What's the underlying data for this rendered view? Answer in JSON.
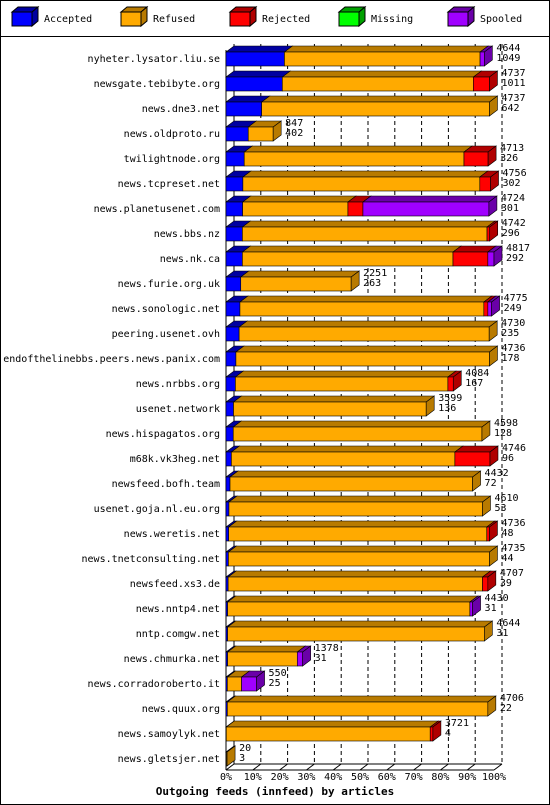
{
  "chart_data": {
    "type": "stacked-bar-3d",
    "orientation": "horizontal",
    "title": "Outgoing feeds (innfeed) by articles",
    "categories": [
      "nyheter.lysator.liu.se",
      "newsgate.tebibyte.org",
      "news.dne3.net",
      "news.oldproto.ru",
      "twilightnode.org",
      "news.tcpreset.net",
      "news.planetusenet.com",
      "news.bbs.nz",
      "news.nk.ca",
      "news.furie.org.uk",
      "news.sonologic.net",
      "peering.usenet.ovh",
      "endofthelinebbs.peers.news.panix.com",
      "news.nrbbs.org",
      "usenet.network",
      "news.hispagatos.org",
      "m68k.vk3heg.net",
      "newsfeed.bofh.team",
      "usenet.goja.nl.eu.org",
      "news.weretis.net",
      "news.tnetconsulting.net",
      "newsfeed.xs3.de",
      "news.nntp4.net",
      "nntp.comgw.net",
      "news.chmurka.net",
      "news.corradoroberto.it",
      "news.quux.org",
      "news.samoylyk.net",
      "news.gletsjer.net"
    ],
    "series": [
      {
        "name": "Accepted",
        "color": "#0000ff",
        "top_color": "#0000a0",
        "values": [
          21.8,
          21.0,
          13.3,
          8.3,
          6.8,
          6.3,
          6.2,
          6.1,
          6.1,
          5.5,
          5.2,
          4.9,
          3.7,
          3.5,
          2.8,
          2.7,
          2.0,
          1.5,
          1.1,
          1.0,
          0.9,
          0.8,
          0.6,
          0.6,
          0.6,
          0.5,
          0.5,
          0.1,
          0.1
        ]
      },
      {
        "name": "Refused",
        "color": "#ffaa00",
        "top_color": "#b87a00",
        "values": [
          73.0,
          71.3,
          85.0,
          9.3,
          82.0,
          88.4,
          39.3,
          91.3,
          78.6,
          41.2,
          91.0,
          93.3,
          94.6,
          79.3,
          71.9,
          92.8,
          83.4,
          90.5,
          94.6,
          96.3,
          97.4,
          94.9,
          90.4,
          95.8,
          26.0,
          5.3,
          97.2,
          76.1,
          0.3
        ]
      },
      {
        "name": "Rejected",
        "color": "#ff0000",
        "top_color": "#b00000",
        "values": [
          0,
          6.0,
          0,
          0,
          9.0,
          4.0,
          5.6,
          1.0,
          13.0,
          0,
          1.5,
          0,
          0,
          2.0,
          0,
          0,
          13.1,
          0,
          0,
          1.0,
          0,
          2.0,
          0,
          0,
          0,
          0,
          0,
          1.0,
          0
        ]
      },
      {
        "name": "Missing",
        "color": "#00ff00",
        "top_color": "#00a000",
        "values": [
          0,
          0,
          0,
          0,
          0,
          0,
          0,
          0,
          0,
          0,
          0,
          0,
          0,
          0,
          0,
          0,
          0,
          0,
          0,
          0,
          0,
          0,
          0,
          0,
          0,
          0,
          0,
          0,
          0
        ]
      },
      {
        "name": "Spooled",
        "color": "#a000ff",
        "top_color": "#6a00a8",
        "values": [
          1.6,
          0,
          0,
          0,
          0,
          0,
          47.0,
          0,
          2.3,
          0,
          1.4,
          0,
          0,
          0,
          0,
          0,
          0,
          0,
          0,
          0,
          0,
          0,
          1.0,
          0,
          2.0,
          5.6,
          0,
          0,
          0
        ]
      }
    ],
    "offered": [
      4644,
      4737,
      4737,
      847,
      4713,
      4756,
      4724,
      4742,
      4817,
      2251,
      4775,
      4730,
      4736,
      4084,
      3599,
      4598,
      4746,
      4432,
      4610,
      4736,
      4735,
      4707,
      4430,
      4644,
      1378,
      550,
      4706,
      3721,
      20
    ],
    "accepted": [
      1049,
      1011,
      642,
      402,
      326,
      302,
      301,
      296,
      292,
      263,
      249,
      235,
      178,
      167,
      136,
      128,
      96,
      72,
      53,
      48,
      44,
      39,
      31,
      31,
      31,
      25,
      22,
      4,
      3
    ],
    "xlim": [
      0,
      100
    ],
    "xticks": [
      {
        "value": 0,
        "label": "0%"
      },
      {
        "value": 10,
        "label": "10%"
      },
      {
        "value": 20,
        "label": "20%"
      },
      {
        "value": 30,
        "label": "30%"
      },
      {
        "value": 40,
        "label": "40%"
      },
      {
        "value": 50,
        "label": "50%"
      },
      {
        "value": 60,
        "label": "60%"
      },
      {
        "value": 70,
        "label": "70%"
      },
      {
        "value": 80,
        "label": "80%"
      },
      {
        "value": 90,
        "label": "90%"
      },
      {
        "value": 100,
        "label": "100%"
      }
    ],
    "grid": true
  }
}
